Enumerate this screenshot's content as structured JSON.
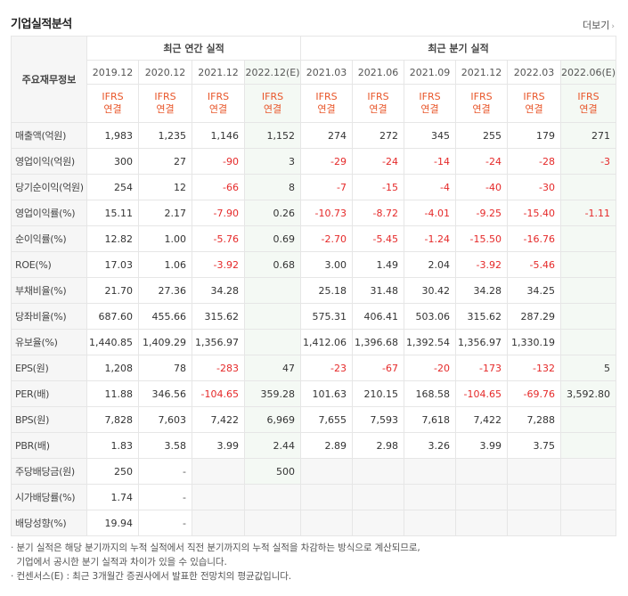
{
  "title": "기업실적분석",
  "more": "더보기",
  "corner": "주요재무정보",
  "annual_header": "최근 연간 실적",
  "quarter_header": "최근 분기 실적",
  "ifrs_top": "IFRS",
  "ifrs_bottom": "연결",
  "annual_years": [
    "2019.12",
    "2020.12",
    "2021.12",
    "2022.12(E)"
  ],
  "quarter_years": [
    "2021.03",
    "2021.06",
    "2021.09",
    "2021.12",
    "2022.03",
    "2022.06(E)"
  ],
  "rows": [
    {
      "label": "매출액(억원)",
      "values": [
        "1,983",
        "1,235",
        "1,146",
        "1,152",
        "274",
        "272",
        "345",
        "255",
        "179",
        "271"
      ]
    },
    {
      "label": "영업이익(억원)",
      "values": [
        "300",
        "27",
        "-90",
        "3",
        "-29",
        "-24",
        "-14",
        "-24",
        "-28",
        "-3"
      ]
    },
    {
      "label": "당기순이익(억원)",
      "values": [
        "254",
        "12",
        "-66",
        "8",
        "-7",
        "-15",
        "-4",
        "-40",
        "-30",
        ""
      ]
    },
    {
      "label": "영업이익률(%)",
      "values": [
        "15.11",
        "2.17",
        "-7.90",
        "0.26",
        "-10.73",
        "-8.72",
        "-4.01",
        "-9.25",
        "-15.40",
        "-1.11"
      ]
    },
    {
      "label": "순이익률(%)",
      "values": [
        "12.82",
        "1.00",
        "-5.76",
        "0.69",
        "-2.70",
        "-5.45",
        "-1.24",
        "-15.50",
        "-16.76",
        ""
      ]
    },
    {
      "label": "ROE(%)",
      "values": [
        "17.03",
        "1.06",
        "-3.92",
        "0.68",
        "3.00",
        "1.49",
        "2.04",
        "-3.92",
        "-5.46",
        ""
      ]
    },
    {
      "label": "부채비율(%)",
      "values": [
        "21.70",
        "27.36",
        "34.28",
        "",
        "25.18",
        "31.48",
        "30.42",
        "34.28",
        "34.25",
        ""
      ]
    },
    {
      "label": "당좌비율(%)",
      "values": [
        "687.60",
        "455.66",
        "315.62",
        "",
        "575.31",
        "406.41",
        "503.06",
        "315.62",
        "287.29",
        ""
      ]
    },
    {
      "label": "유보율(%)",
      "values": [
        "1,440.85",
        "1,409.29",
        "1,356.97",
        "",
        "1,412.06",
        "1,396.68",
        "1,392.54",
        "1,356.97",
        "1,330.19",
        ""
      ]
    },
    {
      "label": "EPS(원)",
      "values": [
        "1,208",
        "78",
        "-283",
        "47",
        "-23",
        "-67",
        "-20",
        "-173",
        "-132",
        "5"
      ]
    },
    {
      "label": "PER(배)",
      "values": [
        "11.88",
        "346.56",
        "-104.65",
        "359.28",
        "101.63",
        "210.15",
        "168.58",
        "-104.65",
        "-69.76",
        "3,592.80"
      ]
    },
    {
      "label": "BPS(원)",
      "values": [
        "7,828",
        "7,603",
        "7,422",
        "6,969",
        "7,655",
        "7,593",
        "7,618",
        "7,422",
        "7,288",
        ""
      ]
    },
    {
      "label": "PBR(배)",
      "values": [
        "1.83",
        "3.58",
        "3.99",
        "2.44",
        "2.89",
        "2.98",
        "3.26",
        "3.99",
        "3.75",
        ""
      ]
    },
    {
      "label": "주당배당금(원)",
      "values": [
        "250",
        "-",
        "",
        "500",
        "",
        "",
        "",
        "",
        "",
        ""
      ]
    },
    {
      "label": "시가배당률(%)",
      "values": [
        "1.74",
        "-",
        "",
        "",
        "",
        "",
        "",
        "",
        "",
        ""
      ]
    },
    {
      "label": "배당성향(%)",
      "values": [
        "19.94",
        "-",
        "",
        "",
        "",
        "",
        "",
        "",
        "",
        ""
      ]
    }
  ],
  "notes": [
    "분기 실적은 해당 분기까지의 누적 실적에서 직전 분기까지의 누적 실적을 차감하는 방식으로 계산되므로,",
    "기업에서 공시한 분기 실적과 차이가 있을 수 있습니다.",
    "컨센서스(E) : 최근 3개월간 증권사에서 발표한 전망치의 평균값입니다."
  ]
}
